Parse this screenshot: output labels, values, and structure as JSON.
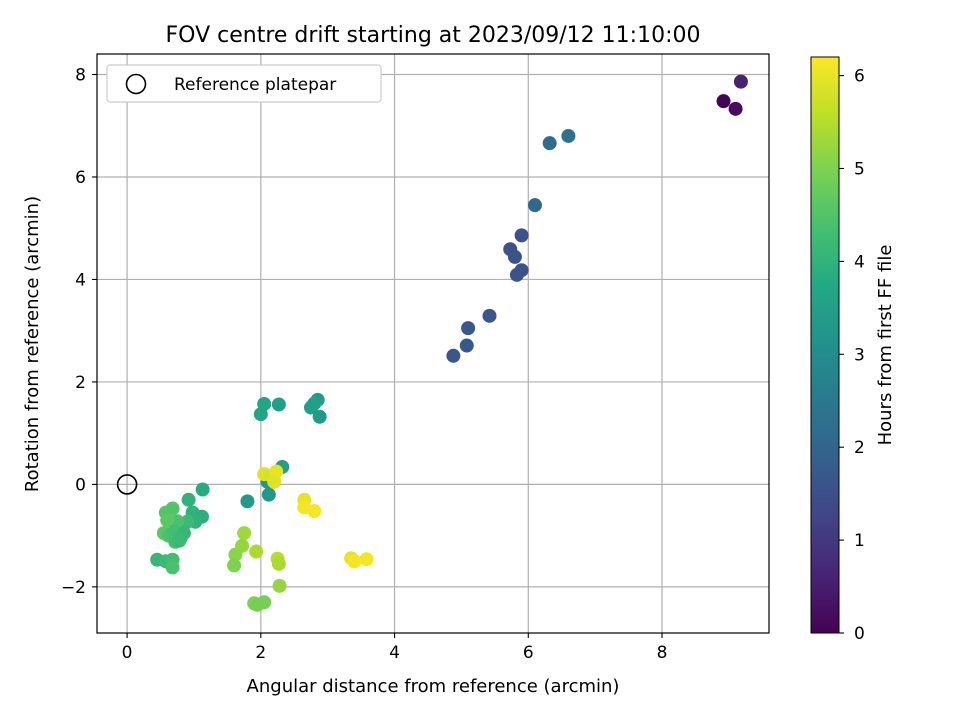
{
  "chart_data": {
    "type": "scatter",
    "title": "FOV centre drift starting at 2023/09/12 11:10:00",
    "xlabel": "Angular distance from reference (arcmin)",
    "ylabel": "Rotation from reference (arcmin)",
    "xlim": [
      -0.45,
      9.6
    ],
    "ylim": [
      -2.9,
      8.4
    ],
    "xticks": [
      0,
      2,
      4,
      6,
      8
    ],
    "yticks": [
      -2,
      0,
      2,
      4,
      6,
      8
    ],
    "xticklabels": [
      "0",
      "2",
      "4",
      "6",
      "8"
    ],
    "yticklabels": [
      "−2",
      "0",
      "2",
      "4",
      "6",
      "8"
    ],
    "grid": true,
    "legend": {
      "position": "top-left",
      "label": "Reference platepar"
    },
    "reference_point": {
      "x": 0,
      "y": 0
    },
    "colorbar": {
      "label": "Hours from first FF file",
      "range": [
        0,
        6.2
      ],
      "ticks": [
        0,
        1,
        2,
        3,
        4,
        5,
        6
      ],
      "ticklabels": [
        "0",
        "1",
        "2",
        "3",
        "4",
        "5",
        "6"
      ],
      "colormap": "viridis"
    },
    "points": [
      {
        "x": 8.92,
        "y": 7.48,
        "h": 0.05
      },
      {
        "x": 9.1,
        "y": 7.33,
        "h": 0.2
      },
      {
        "x": 9.18,
        "y": 7.86,
        "h": 0.6
      },
      {
        "x": 6.6,
        "y": 6.8,
        "h": 2.3
      },
      {
        "x": 6.32,
        "y": 6.66,
        "h": 2.2
      },
      {
        "x": 6.1,
        "y": 5.45,
        "h": 2.1
      },
      {
        "x": 5.9,
        "y": 4.86,
        "h": 1.6
      },
      {
        "x": 5.73,
        "y": 4.59,
        "h": 1.6
      },
      {
        "x": 5.8,
        "y": 4.44,
        "h": 1.6
      },
      {
        "x": 5.9,
        "y": 4.18,
        "h": 1.6
      },
      {
        "x": 5.83,
        "y": 4.09,
        "h": 1.6
      },
      {
        "x": 5.42,
        "y": 3.29,
        "h": 1.7
      },
      {
        "x": 5.1,
        "y": 3.05,
        "h": 1.7
      },
      {
        "x": 5.08,
        "y": 2.71,
        "h": 1.7
      },
      {
        "x": 4.88,
        "y": 2.51,
        "h": 1.7
      },
      {
        "x": 2.85,
        "y": 1.65,
        "h": 3.4
      },
      {
        "x": 2.8,
        "y": 1.58,
        "h": 3.5
      },
      {
        "x": 2.75,
        "y": 1.5,
        "h": 3.5
      },
      {
        "x": 2.88,
        "y": 1.32,
        "h": 3.4
      },
      {
        "x": 2.27,
        "y": 1.56,
        "h": 3.5
      },
      {
        "x": 2.05,
        "y": 1.57,
        "h": 3.6
      },
      {
        "x": 2.0,
        "y": 1.37,
        "h": 3.6
      },
      {
        "x": 2.32,
        "y": 0.34,
        "h": 3.5
      },
      {
        "x": 2.1,
        "y": 0.05,
        "h": 3.3
      },
      {
        "x": 2.12,
        "y": -0.2,
        "h": 3.3
      },
      {
        "x": 1.8,
        "y": -0.33,
        "h": 3.4
      },
      {
        "x": 1.13,
        "y": -0.1,
        "h": 3.8
      },
      {
        "x": 0.92,
        "y": -0.3,
        "h": 4.0
      },
      {
        "x": 0.98,
        "y": -0.55,
        "h": 4.0
      },
      {
        "x": 1.12,
        "y": -0.63,
        "h": 3.9
      },
      {
        "x": 1.02,
        "y": -0.73,
        "h": 4.0
      },
      {
        "x": 0.9,
        "y": -0.73,
        "h": 4.2
      },
      {
        "x": 0.8,
        "y": -0.85,
        "h": 4.1
      },
      {
        "x": 0.75,
        "y": -0.72,
        "h": 4.4
      },
      {
        "x": 0.68,
        "y": -0.47,
        "h": 4.5
      },
      {
        "x": 0.58,
        "y": -0.55,
        "h": 4.5
      },
      {
        "x": 0.6,
        "y": -0.7,
        "h": 4.6
      },
      {
        "x": 0.55,
        "y": -0.95,
        "h": 4.6
      },
      {
        "x": 0.62,
        "y": -1.0,
        "h": 4.4
      },
      {
        "x": 0.7,
        "y": -0.92,
        "h": 4.3
      },
      {
        "x": 0.8,
        "y": -1.05,
        "h": 4.2
      },
      {
        "x": 0.85,
        "y": -0.95,
        "h": 4.1
      },
      {
        "x": 0.72,
        "y": -1.12,
        "h": 4.3
      },
      {
        "x": 0.78,
        "y": -1.1,
        "h": 4.2
      },
      {
        "x": 0.45,
        "y": -1.47,
        "h": 4.1
      },
      {
        "x": 0.58,
        "y": -1.5,
        "h": 4.2
      },
      {
        "x": 0.68,
        "y": -1.47,
        "h": 4.3
      },
      {
        "x": 0.68,
        "y": -1.62,
        "h": 4.4
      },
      {
        "x": 1.75,
        "y": -0.95,
        "h": 5.3
      },
      {
        "x": 1.72,
        "y": -1.2,
        "h": 5.2
      },
      {
        "x": 1.62,
        "y": -1.37,
        "h": 5.1
      },
      {
        "x": 1.6,
        "y": -1.58,
        "h": 5.0
      },
      {
        "x": 1.93,
        "y": -1.31,
        "h": 5.4
      },
      {
        "x": 2.25,
        "y": -1.45,
        "h": 5.5
      },
      {
        "x": 2.27,
        "y": -1.55,
        "h": 5.4
      },
      {
        "x": 2.28,
        "y": -1.98,
        "h": 5.2
      },
      {
        "x": 1.9,
        "y": -2.32,
        "h": 5.0
      },
      {
        "x": 1.95,
        "y": -2.35,
        "h": 4.9
      },
      {
        "x": 2.05,
        "y": -2.3,
        "h": 4.9
      },
      {
        "x": 2.05,
        "y": 0.2,
        "h": 5.9
      },
      {
        "x": 2.15,
        "y": 0.17,
        "h": 5.8
      },
      {
        "x": 2.23,
        "y": 0.25,
        "h": 6.0
      },
      {
        "x": 2.2,
        "y": 0.05,
        "h": 5.9
      },
      {
        "x": 2.65,
        "y": -0.3,
        "h": 6.0
      },
      {
        "x": 2.65,
        "y": -0.45,
        "h": 6.1
      },
      {
        "x": 2.8,
        "y": -0.52,
        "h": 6.1
      },
      {
        "x": 3.35,
        "y": -1.44,
        "h": 6.0
      },
      {
        "x": 3.4,
        "y": -1.5,
        "h": 6.1
      },
      {
        "x": 3.58,
        "y": -1.46,
        "h": 6.1
      }
    ]
  }
}
